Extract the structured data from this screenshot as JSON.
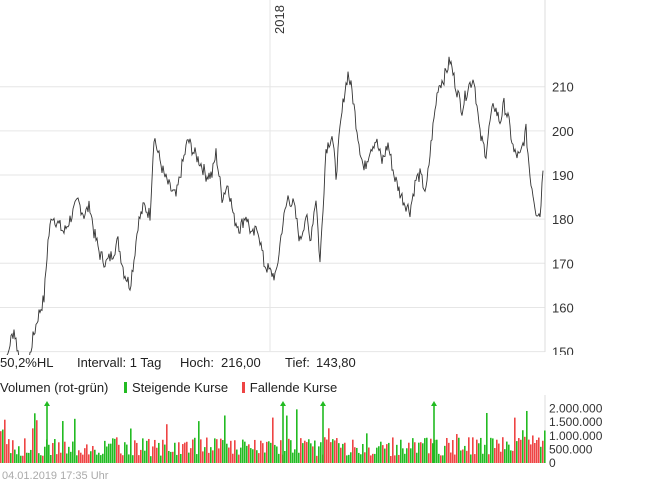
{
  "chart_data": {
    "type": "line",
    "year_marker": "2018",
    "y_ticks": [
      150,
      160,
      170,
      180,
      190,
      200,
      210
    ],
    "ylim": [
      140,
      220
    ],
    "grid": true,
    "x_count": 250,
    "close_anchors": [
      [
        0,
        146
      ],
      [
        4,
        144
      ],
      [
        10,
        152
      ],
      [
        14,
        155
      ],
      [
        18,
        150
      ],
      [
        22,
        145
      ],
      [
        26,
        143.8
      ],
      [
        32,
        152
      ],
      [
        38,
        158
      ],
      [
        44,
        162
      ],
      [
        48,
        175
      ],
      [
        52,
        181
      ],
      [
        58,
        179
      ],
      [
        64,
        177
      ],
      [
        70,
        180
      ],
      [
        78,
        184
      ],
      [
        84,
        181
      ],
      [
        90,
        183
      ],
      [
        94,
        177
      ],
      [
        100,
        172
      ],
      [
        106,
        170
      ],
      [
        112,
        172
      ],
      [
        118,
        175
      ],
      [
        124,
        168
      ],
      [
        130,
        165
      ],
      [
        134,
        171
      ],
      [
        138,
        179
      ],
      [
        144,
        183
      ],
      [
        150,
        181
      ],
      [
        154,
        199
      ],
      [
        158,
        195
      ],
      [
        164,
        190
      ],
      [
        170,
        187
      ],
      [
        176,
        185
      ],
      [
        182,
        192
      ],
      [
        188,
        198
      ],
      [
        194,
        195
      ],
      [
        200,
        193
      ],
      [
        206,
        190
      ],
      [
        212,
        190
      ],
      [
        216,
        195
      ],
      [
        222,
        185
      ],
      [
        228,
        188
      ],
      [
        234,
        180
      ],
      [
        240,
        178
      ],
      [
        246,
        181
      ],
      [
        252,
        176
      ],
      [
        258,
        178
      ],
      [
        264,
        170
      ],
      [
        270,
        168
      ],
      [
        276,
        167
      ],
      [
        282,
        178
      ],
      [
        288,
        185
      ],
      [
        294,
        183
      ],
      [
        300,
        175
      ],
      [
        306,
        181
      ],
      [
        310,
        175
      ],
      [
        316,
        185
      ],
      [
        320,
        170
      ],
      [
        326,
        196
      ],
      [
        332,
        199
      ],
      [
        336,
        190
      ],
      [
        340,
        200
      ],
      [
        344,
        208
      ],
      [
        348,
        213
      ],
      [
        352,
        209
      ],
      [
        356,
        202
      ],
      [
        360,
        196
      ],
      [
        364,
        191
      ],
      [
        370,
        196
      ],
      [
        376,
        198
      ],
      [
        382,
        193
      ],
      [
        388,
        197
      ],
      [
        394,
        190
      ],
      [
        400,
        186
      ],
      [
        404,
        184
      ],
      [
        410,
        182
      ],
      [
        416,
        189
      ],
      [
        420,
        190
      ],
      [
        426,
        186
      ],
      [
        432,
        199
      ],
      [
        438,
        210
      ],
      [
        444,
        212
      ],
      [
        450,
        216
      ],
      [
        456,
        210
      ],
      [
        462,
        205
      ],
      [
        468,
        210
      ],
      [
        474,
        212
      ],
      [
        480,
        199
      ],
      [
        486,
        195
      ],
      [
        490,
        202
      ],
      [
        494,
        206
      ],
      [
        500,
        202
      ],
      [
        504,
        206
      ],
      [
        508,
        203
      ],
      [
        514,
        195
      ],
      [
        520,
        194
      ],
      [
        526,
        200
      ],
      [
        530,
        190
      ],
      [
        536,
        182
      ],
      [
        540,
        181
      ],
      [
        543,
        191
      ]
    ],
    "volume_ticks": [
      "2.000.000",
      "1.500.000",
      "1.000.000",
      "500.000",
      "0"
    ],
    "volume_max": 2500000,
    "volume_up_color": "#22bb22",
    "volume_down_color": "#ee4444",
    "volume_spike_markers": [
      47,
      283,
      323,
      434
    ]
  },
  "stats": {
    "range": "50,2%HL",
    "interval": "Intervall: 1 Tag",
    "high_label": "Hoch:",
    "high_value": "216,00",
    "low_label": "Tief:",
    "low_value": "143,80"
  },
  "legend": {
    "title": "Volumen (rot-grün)",
    "rising": "Steigende Kurse",
    "falling": "Fallende Kurse"
  },
  "footer": {
    "timestamp": "04.01.2019 17:35 Uhr"
  }
}
